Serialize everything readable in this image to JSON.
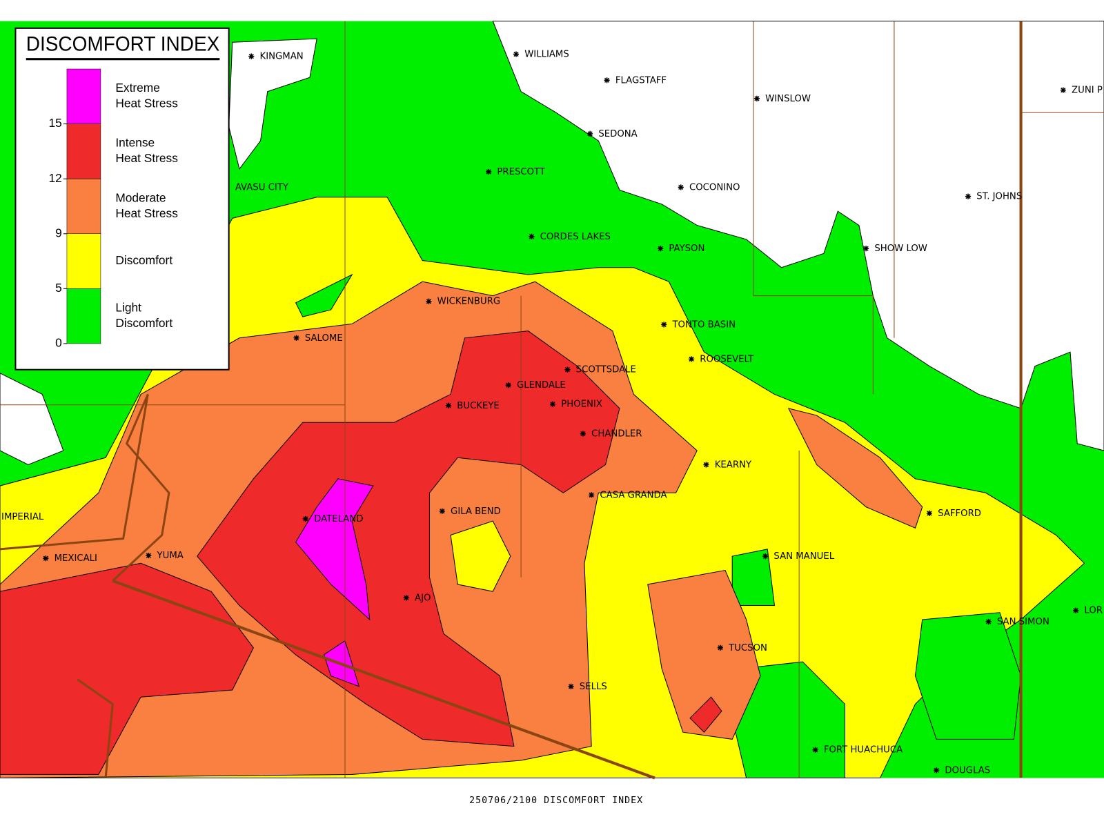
{
  "legend": {
    "title": "DISCOMFORT INDEX",
    "ticks": [
      0,
      5,
      9,
      12,
      15
    ],
    "entries": [
      {
        "lines": [
          "Extreme",
          "Heat Stress"
        ],
        "color": "#ff00ff"
      },
      {
        "lines": [
          "Intense",
          "Heat Stress"
        ],
        "color": "#ee2a2a"
      },
      {
        "lines": [
          "Moderate",
          "Heat Stress"
        ],
        "color": "#f98040"
      },
      {
        "lines": [
          "Discomfort"
        ],
        "color": "#ffff00"
      },
      {
        "lines": [
          "Light",
          "Discomfort"
        ],
        "color": "#00ee00"
      }
    ]
  },
  "cities": [
    "KINGMAN",
    "WILLIAMS",
    "FLAGSTAFF",
    "WINSLOW",
    "ZUNI P",
    "SEDONA",
    "PRESCOTT",
    "AVASU CITY",
    "COCONINO",
    "ST. JOHNS",
    "CORDES LAKES",
    "PAYSON",
    "SHOW LOW",
    "WICKENBURG",
    "TONTO BASIN",
    "SALOME",
    "ROOSEVELT",
    "SCOTTSDALE",
    "GLENDALE",
    "BUCKEYE",
    "PHOENIX",
    "CHANDLER",
    "KEARNY",
    "CASA GRANDA",
    "IMPERIAL",
    "GILA BEND",
    "DATELAND",
    "SAFFORD",
    "YUMA",
    "MEXICALI",
    "SAN MANUEL",
    "AJO",
    "SAN SIMON",
    "LOR",
    "TUCSON",
    "SELLS",
    "FORT HUACHUCA",
    "DOUGLAS"
  ],
  "footer": "250706/2100 DISCOMFORT INDEX"
}
